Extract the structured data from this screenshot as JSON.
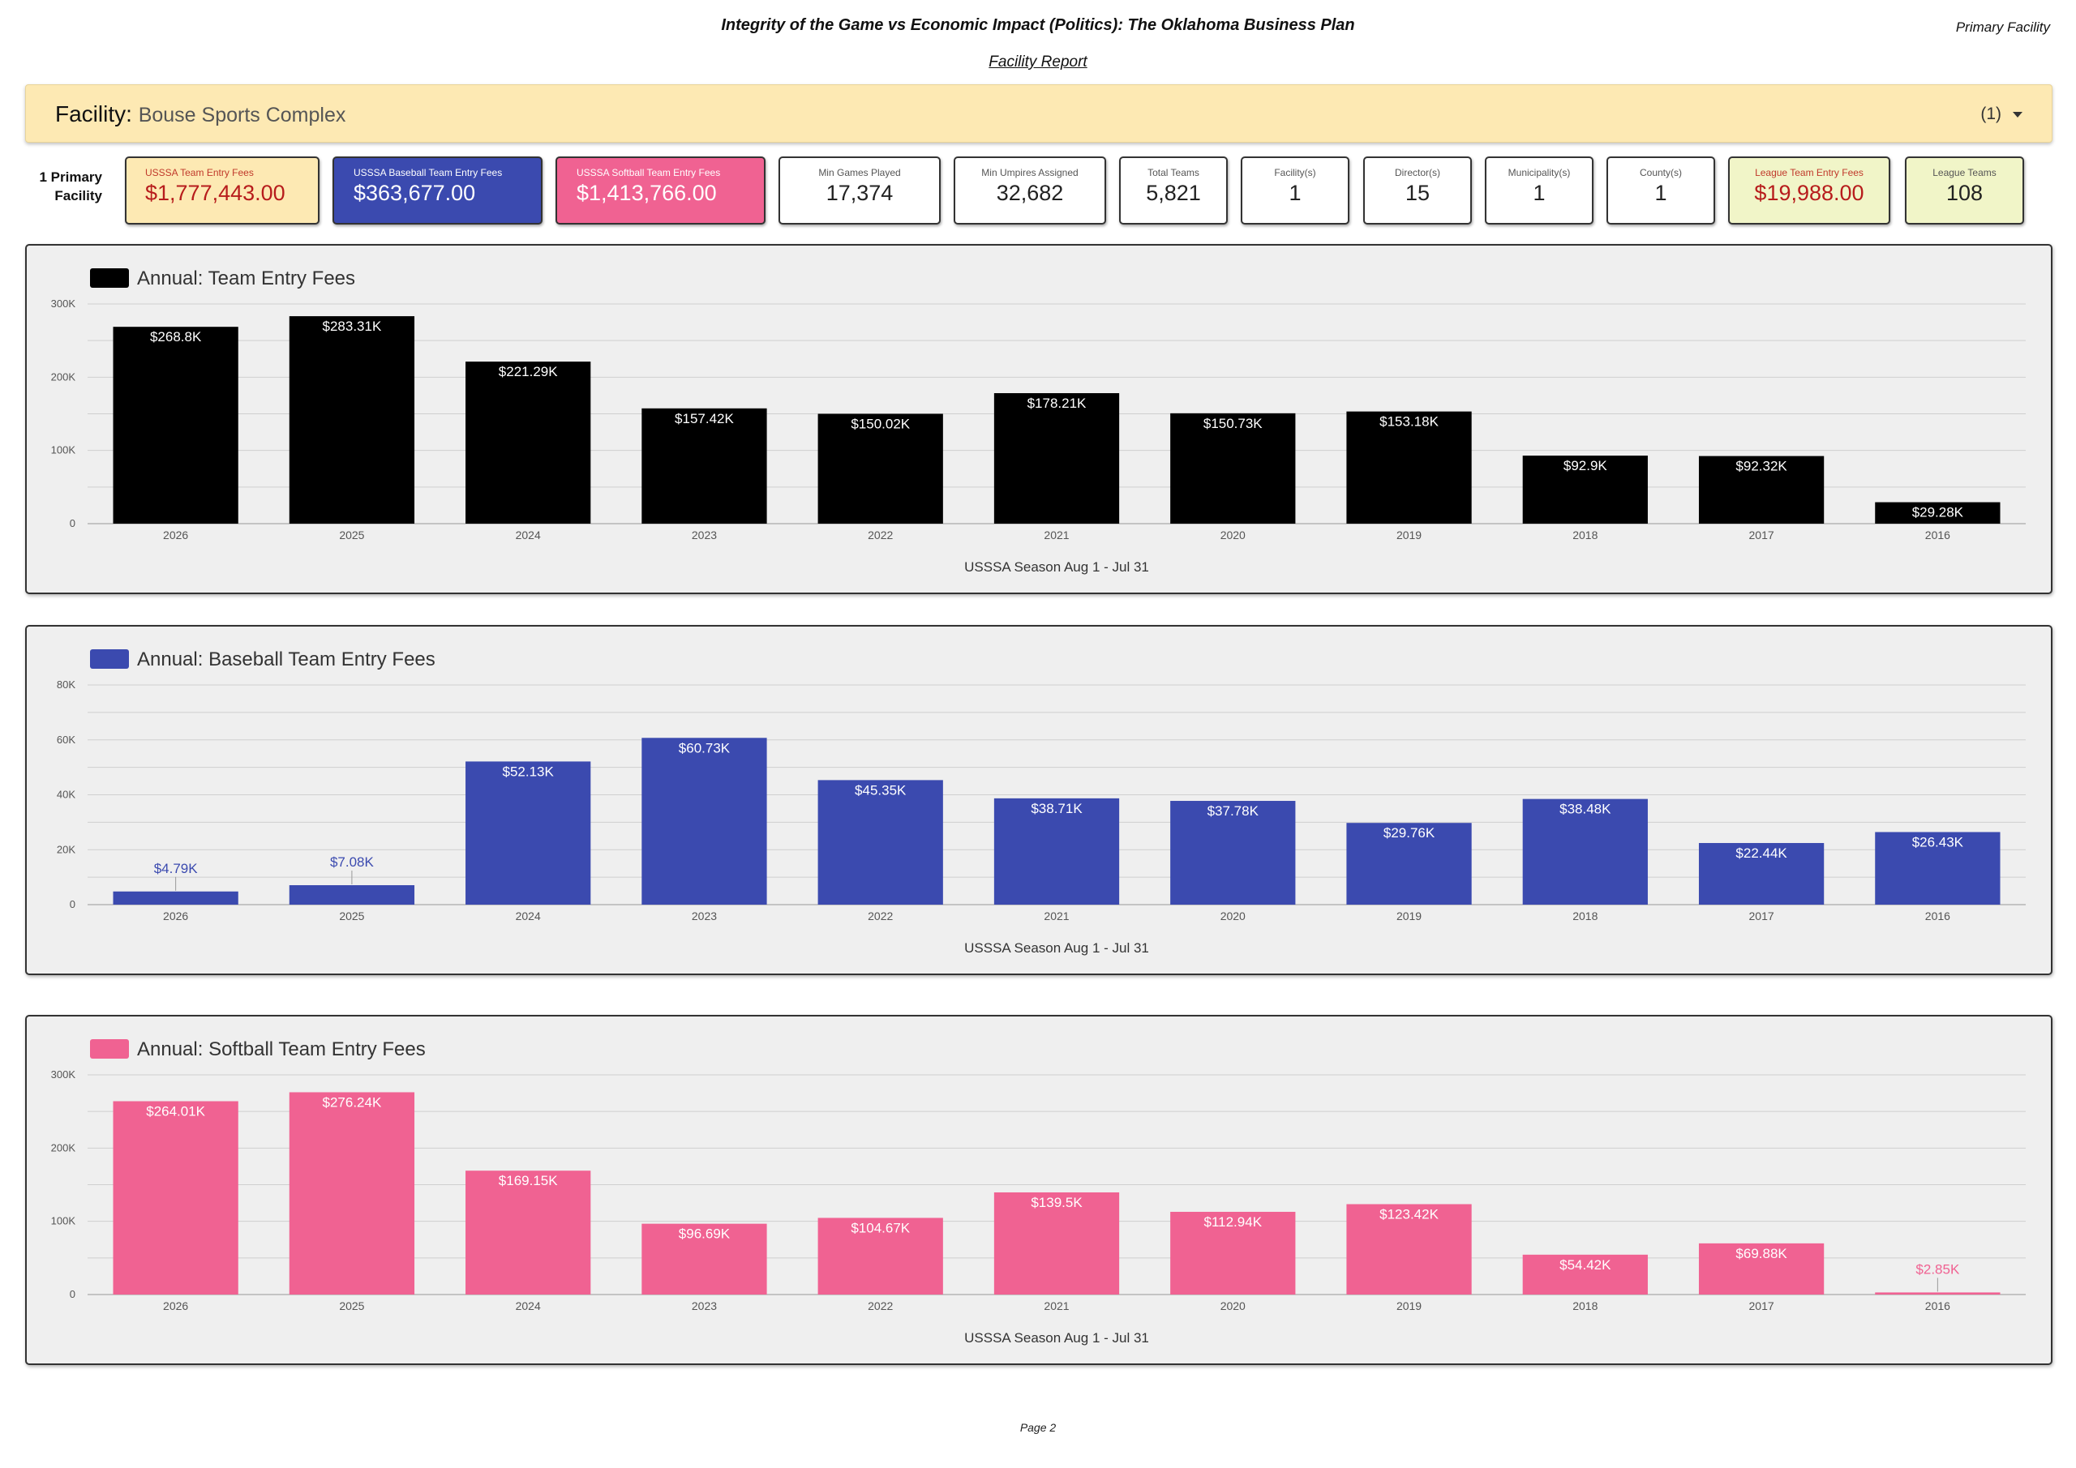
{
  "header": {
    "title": "Integrity of the Game vs Economic Impact (Politics): The Oklahoma Business Plan",
    "corner_label": "Primary Facility",
    "subtitle": "Facility Report"
  },
  "facility": {
    "label": "Facility",
    "value": "Bouse Sports Complex",
    "count": "(1)"
  },
  "primary_label": "1 Primary Facility",
  "kpis": [
    {
      "label": "USSSA Team Entry Fees",
      "value": "$1,777,443.00",
      "style": "yellow"
    },
    {
      "label": "USSSA Baseball Team Entry Fees",
      "value": "$363,677.00",
      "style": "blue"
    },
    {
      "label": "USSSA Softball Team Entry Fees",
      "value": "$1,413,766.00",
      "style": "pink"
    },
    {
      "label": "Min Games Played",
      "value": "17,374",
      "style": "white"
    },
    {
      "label": "Min Umpires Assigned",
      "value": "32,682",
      "style": "white"
    },
    {
      "label": "Total Teams",
      "value": "5,821",
      "style": "white"
    },
    {
      "label": "Facility(s)",
      "value": "1",
      "style": "white"
    },
    {
      "label": "Director(s)",
      "value": "15",
      "style": "white"
    },
    {
      "label": "Municipality(s)",
      "value": "1",
      "style": "white"
    },
    {
      "label": "County(s)",
      "value": "1",
      "style": "white"
    },
    {
      "label": "League Team Entry Fees",
      "value": "$19,988.00",
      "style": "green-red"
    },
    {
      "label": "League Teams",
      "value": "108",
      "style": "green"
    }
  ],
  "chart_data": [
    {
      "type": "bar",
      "legend": "Annual: Team Entry Fees",
      "color": "#000000",
      "xlabel": "USSSA Season Aug 1 - Jul 31",
      "categories": [
        "2026",
        "2025",
        "2024",
        "2023",
        "2022",
        "2021",
        "2020",
        "2019",
        "2018",
        "2017",
        "2016"
      ],
      "values": [
        268800,
        283310,
        221290,
        157420,
        150020,
        178210,
        150730,
        153180,
        92900,
        92320,
        29280
      ],
      "data_labels": [
        "$268.8K",
        "$283.31K",
        "$221.29K",
        "$157.42K",
        "$150.02K",
        "$178.21K",
        "$150.73K",
        "$153.18K",
        "$92.9K",
        "$92.32K",
        "$29.28K"
      ],
      "ylim": [
        0,
        300000
      ],
      "yticks": [
        0,
        100000,
        200000,
        300000
      ],
      "ytick_labels": [
        "0",
        "100K",
        "200K",
        "300K"
      ]
    },
    {
      "type": "bar",
      "legend": "Annual: Baseball Team Entry Fees",
      "color": "#3b4aaf",
      "xlabel": "USSSA Season Aug 1 - Jul 31",
      "categories": [
        "2026",
        "2025",
        "2024",
        "2023",
        "2022",
        "2021",
        "2020",
        "2019",
        "2018",
        "2017",
        "2016"
      ],
      "values": [
        4790,
        7080,
        52130,
        60730,
        45350,
        38710,
        37780,
        29760,
        38480,
        22440,
        26430
      ],
      "data_labels": [
        "$4.79K",
        "$7.08K",
        "$52.13K",
        "$60.73K",
        "$45.35K",
        "$38.71K",
        "$37.78K",
        "$29.76K",
        "$38.48K",
        "$22.44K",
        "$26.43K"
      ],
      "ylim": [
        0,
        80000
      ],
      "yticks": [
        0,
        20000,
        40000,
        60000,
        80000
      ],
      "ytick_labels": [
        "0",
        "20K",
        "40K",
        "60K",
        "80K"
      ]
    },
    {
      "type": "bar",
      "legend": "Annual: Softball Team Entry Fees",
      "color": "#f06292",
      "xlabel": "USSSA Season Aug 1 - Jul 31",
      "categories": [
        "2026",
        "2025",
        "2024",
        "2023",
        "2022",
        "2021",
        "2020",
        "2019",
        "2018",
        "2017",
        "2016"
      ],
      "values": [
        264010,
        276240,
        169150,
        96690,
        104670,
        139500,
        112940,
        123420,
        54420,
        69880,
        2850
      ],
      "data_labels": [
        "$264.01K",
        "$276.24K",
        "$169.15K",
        "$96.69K",
        "$104.67K",
        "$139.5K",
        "$112.94K",
        "$123.42K",
        "$54.42K",
        "$69.88K",
        "$2.85K"
      ],
      "ylim": [
        0,
        300000
      ],
      "yticks": [
        0,
        100000,
        200000,
        300000
      ],
      "ytick_labels": [
        "0",
        "100K",
        "200K",
        "300K"
      ]
    }
  ],
  "footer": "Page 2"
}
